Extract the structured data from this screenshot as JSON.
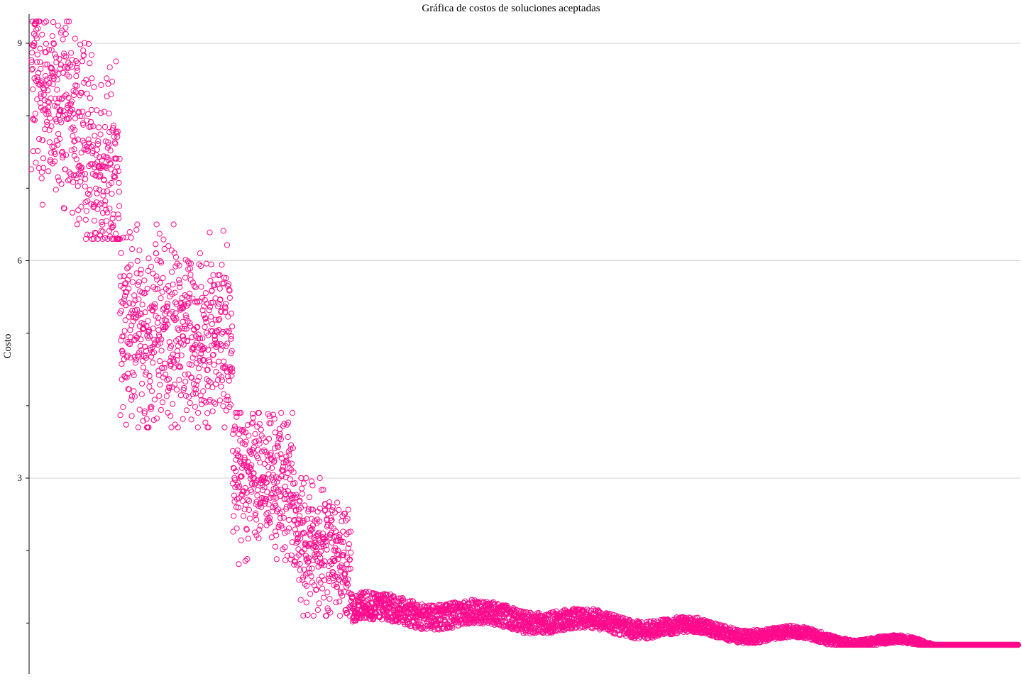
{
  "colors": {
    "points": "#ff0a8c",
    "grid": "#d0d0d0",
    "axis": "#000000"
  },
  "chart_data": {
    "type": "scatter",
    "title": "Gráfica de costos de soluciones aceptadas",
    "xlabel": "",
    "ylabel": "Costo",
    "ylim": [
      0.7,
      9.4
    ],
    "major_ticks": [
      3,
      6,
      9
    ],
    "minor_ticks": [
      1,
      2,
      4,
      5,
      7,
      8
    ],
    "tick_labels": [
      "3",
      "6",
      "9"
    ],
    "grid": "horizontal at labeled ticks",
    "x_axis_visible": false,
    "n_points": 5000,
    "segments": [
      {
        "x": [
          0,
          450
        ],
        "y_min": 6.3,
        "y_max": 9.3,
        "y_center": 7.8,
        "trend": -1.0
      },
      {
        "x": [
          450,
          1020
        ],
        "y_min": 3.7,
        "y_max": 6.5,
        "y_center": 5.0,
        "trend": -0.1
      },
      {
        "x": [
          1020,
          1330
        ],
        "y_min": 1.8,
        "y_max": 3.9,
        "y_center": 3.0,
        "trend": -0.3
      },
      {
        "x": [
          1330,
          1620
        ],
        "y_min": 1.1,
        "y_max": 3.0,
        "y_center": 2.0,
        "trend": -0.5
      },
      {
        "x": [
          1620,
          5000
        ],
        "y_min": 0.7,
        "y_max": 1.9,
        "y_center": 1.2,
        "trend": -1.0
      }
    ],
    "series": [
      {
        "name": "",
        "x_range": [
          0,
          5000
        ],
        "y_range": [
          0.7,
          9.3
        ]
      }
    ]
  }
}
